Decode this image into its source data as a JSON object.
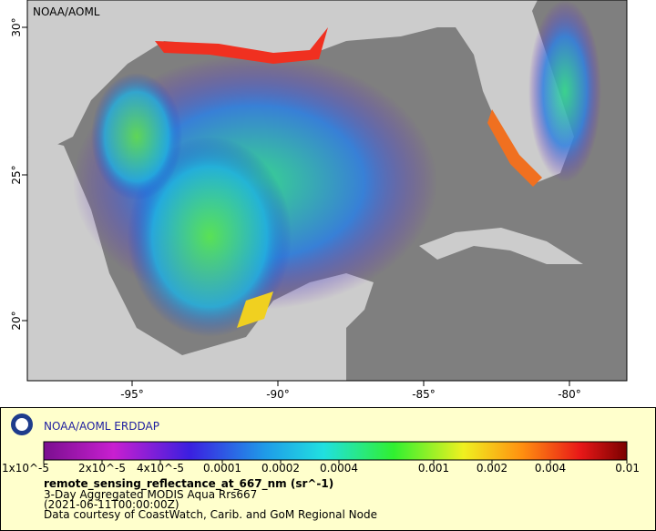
{
  "map": {
    "watermark": "NOAA/AOML",
    "lon_ticks": [
      "-95°",
      "-90°",
      "-85°",
      "-80°"
    ],
    "lat_ticks": [
      "30°",
      "25°",
      "20°"
    ]
  },
  "legend": {
    "title": "NOAA/AOML ERDDAP",
    "colorbar_ticks": [
      "1x10^-5",
      "2x10^-5",
      "4x10^-5",
      "0.0001",
      "0.0002",
      "0.0004",
      "0.001",
      "0.002",
      "0.004",
      "0.01"
    ],
    "variable": "remote_sensing_reflectance_at_667_nm (sr^-1)",
    "lines": [
      "3-Day Aggregated MODIS Aqua Rrs667",
      "(2021-06-11T00:00:00Z)",
      "Data courtesy of CoastWatch, Carib. and GoM Regional Node"
    ]
  }
}
